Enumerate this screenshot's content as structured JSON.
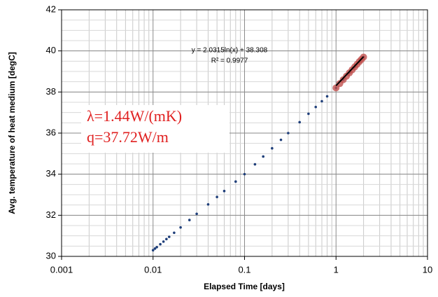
{
  "chart_data": {
    "type": "scatter",
    "x_label": "Elapsed Time [days]",
    "y_label": "Avg. temperature of heat medium [degC]",
    "xscale": "log",
    "grid": true,
    "minor_grid": true,
    "yminor": 0.5,
    "xlim": [
      0.001,
      10
    ],
    "xticks": [
      0.001,
      0.01,
      0.1,
      1,
      10
    ],
    "ylim": [
      30,
      42
    ],
    "yticks": [
      30,
      32,
      34,
      36,
      38,
      40,
      42
    ],
    "series": [
      {
        "color": "#1f3f7a",
        "x": [
          0.01,
          0.0105,
          0.011,
          0.012,
          0.013,
          0.014,
          0.015,
          0.017,
          0.02,
          0.025,
          0.03,
          0.04,
          0.05,
          0.06,
          0.08,
          0.1,
          0.13,
          0.16,
          0.2,
          0.25,
          0.3,
          0.4,
          0.5,
          0.6,
          0.7,
          0.8,
          1,
          1.2,
          1.4,
          1.6,
          1.8,
          2
        ],
        "values": [
          30.3,
          30.38,
          30.45,
          30.59,
          30.72,
          30.84,
          30.95,
          31.15,
          31.41,
          31.77,
          32.07,
          32.53,
          32.89,
          33.18,
          33.64,
          34.0,
          34.48,
          34.86,
          35.26,
          35.67,
          36.0,
          36.53,
          36.94,
          37.27,
          37.55,
          37.79,
          38.2,
          38.6,
          38.93,
          39.22,
          39.48,
          39.7
        ]
      },
      {
        "color": "#c0504d",
        "x": [
          1,
          1.1,
          1.2,
          1.3,
          1.4,
          1.5,
          1.6,
          1.7,
          1.8,
          1.9,
          2
        ],
        "values": [
          38.2,
          38.41,
          38.6,
          38.77,
          38.93,
          39.08,
          39.22,
          39.35,
          39.48,
          39.59,
          39.7
        ]
      }
    ],
    "trendline": {
      "color": "#000000",
      "x": [
        1,
        2
      ],
      "values": [
        38.308,
        39.716
      ]
    },
    "equation": "y = 2.0315ln(x) + 38.308",
    "r_squared": "R² = 0.9977",
    "box_lines": [
      "λ=1.44W/(mK)",
      "q=37.72W/m"
    ]
  }
}
